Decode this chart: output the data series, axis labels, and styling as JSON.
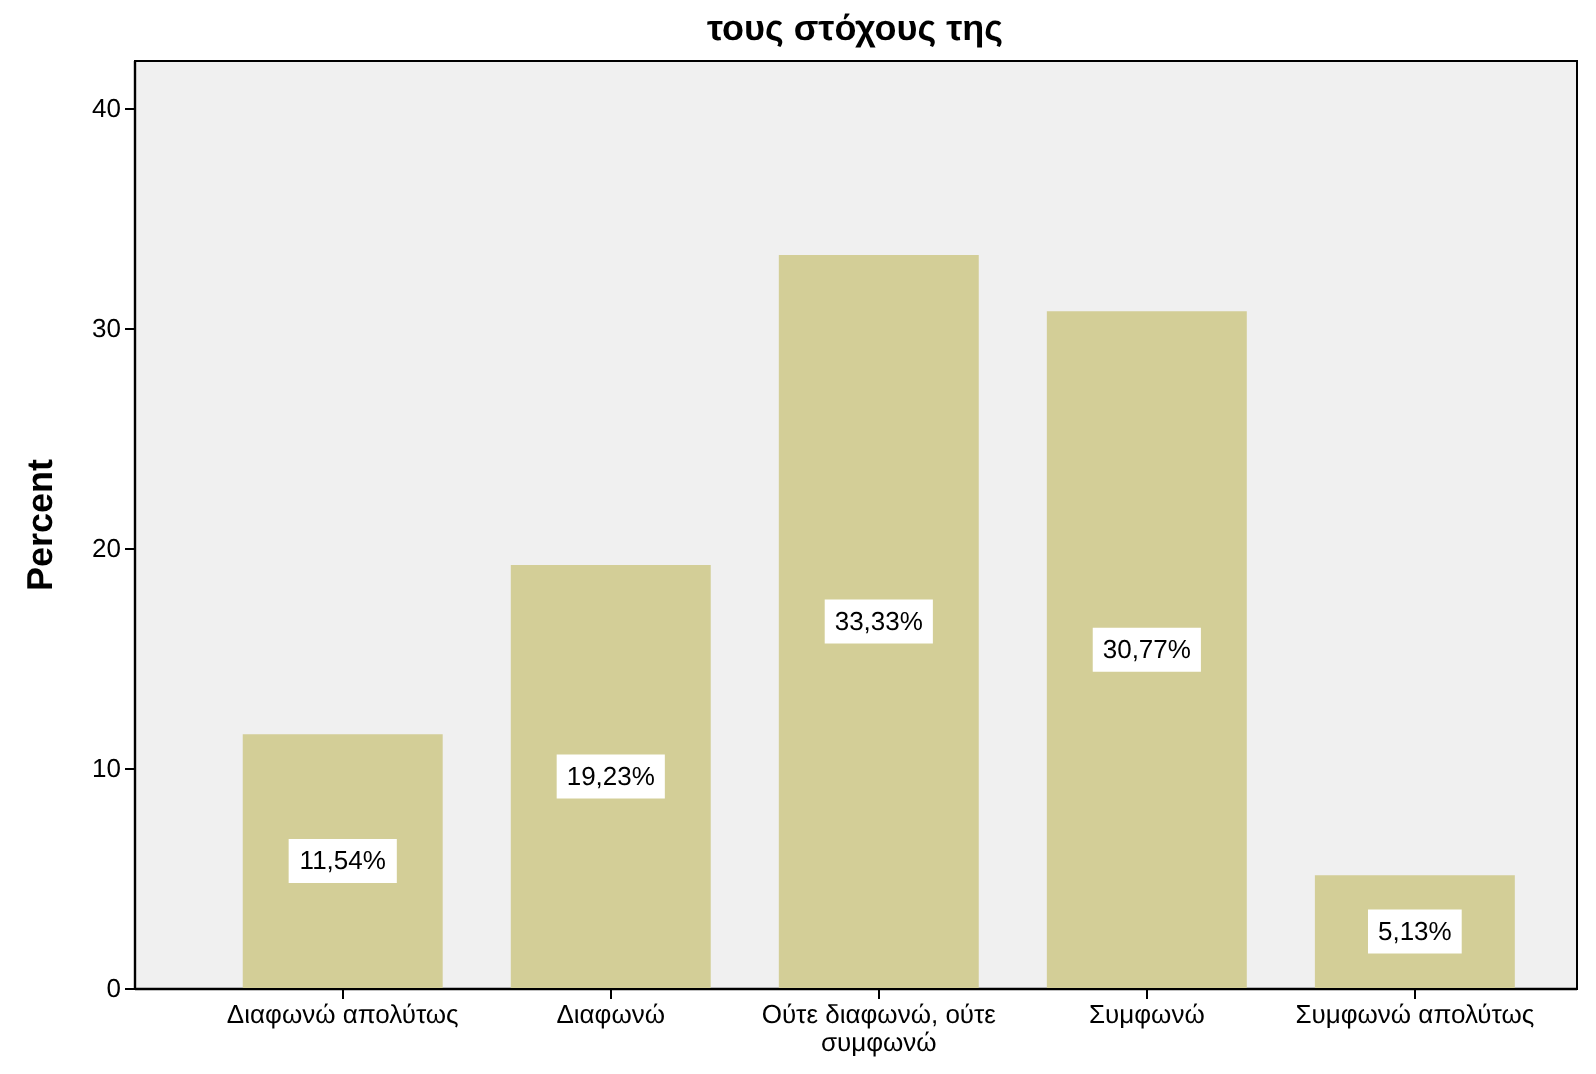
{
  "chart_data": {
    "type": "bar",
    "title": "τους στόχους της",
    "ylabel": "Percent",
    "categories": [
      "Διαφωνώ απολύτως",
      "Διαφωνώ",
      "Ούτε διαφωνώ, ούτε συμφωνώ",
      "Συμφωνώ",
      "Συμφωνώ απολύτως"
    ],
    "values": [
      11.54,
      19.23,
      33.33,
      30.77,
      5.13
    ],
    "color": "#d3ce97",
    "value_labels": [
      "11,54%",
      "19,23%",
      "33,33%",
      "30,77%",
      "5,13%"
    ],
    "ylim": [
      0,
      42.2
    ],
    "yticks": [
      0,
      10,
      20,
      30,
      40
    ]
  }
}
